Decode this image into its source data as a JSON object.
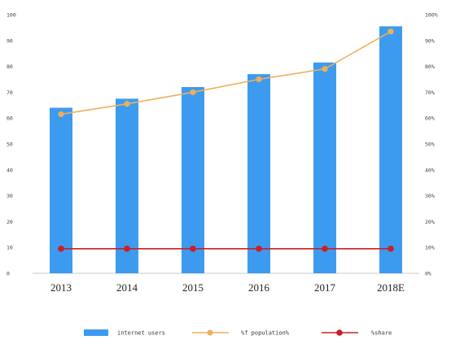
{
  "chart_data": {
    "type": "bar",
    "categories": [
      "2013",
      "2014",
      "2015",
      "2016",
      "2017",
      "2018E"
    ],
    "series": [
      {
        "name": "internet users",
        "type": "bar",
        "axis": "left",
        "color": "#3d9bef",
        "values": [
          64,
          67.5,
          72,
          77,
          81.5,
          95.5
        ]
      },
      {
        "name": "%f population%",
        "type": "line",
        "axis": "right",
        "color": "#efae5b",
        "values": [
          61.5,
          65.5,
          70,
          75,
          79,
          93.5
        ]
      },
      {
        "name": "%share",
        "type": "line",
        "axis": "right",
        "color": "#cc1f24",
        "values": [
          9.5,
          9.5,
          9.5,
          9.5,
          9.5,
          9.5
        ]
      }
    ],
    "ylim": [
      0,
      100
    ],
    "y_ticks": [
      "0",
      "10",
      "20",
      "30",
      "40",
      "50",
      "60",
      "70",
      "80",
      "90",
      "100"
    ],
    "y2lim": [
      0,
      100
    ],
    "y2_ticks": [
      "0%",
      "10%",
      "20%",
      "30%",
      "40%",
      "50%",
      "60%",
      "70%",
      "80%",
      "90%",
      "100%"
    ],
    "grid": false,
    "legend_position": "bottom"
  }
}
